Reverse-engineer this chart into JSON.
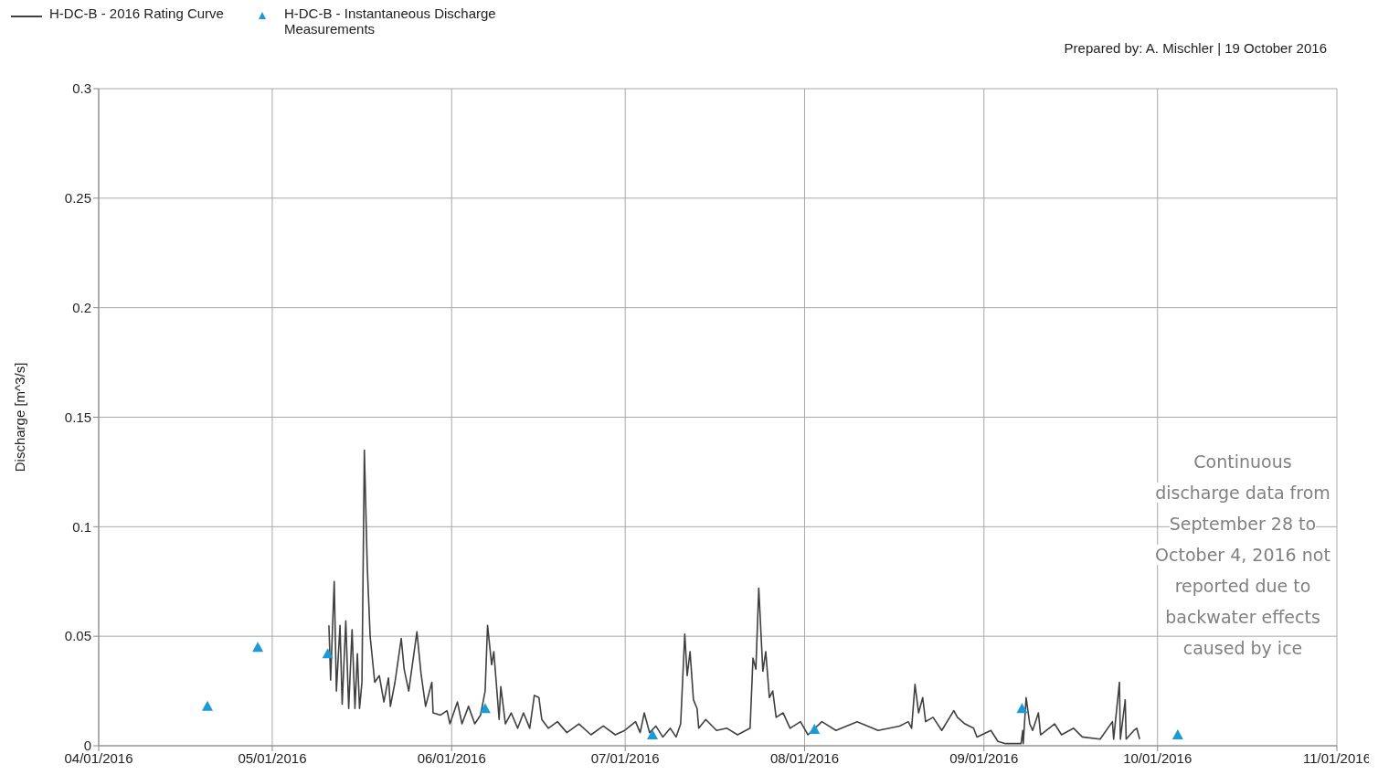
{
  "chart_data": {
    "type": "line",
    "ylabel": "Discharge [m^3/s]",
    "annotations": [
      "Prepared by: A. Mischler | 19 October 2016",
      "Continuous discharge data from September 28 to October 4, 2016 not reported due to backwater effects caused by ice"
    ],
    "xlim": [
      "2016-04-01",
      "2016-11-01"
    ],
    "xticks": [
      {
        "value": "2016-04-01",
        "label": "04/01/2016"
      },
      {
        "value": "2016-05-01",
        "label": "05/01/2016"
      },
      {
        "value": "2016-06-01",
        "label": "06/01/2016"
      },
      {
        "value": "2016-07-01",
        "label": "07/01/2016"
      },
      {
        "value": "2016-08-01",
        "label": "08/01/2016"
      },
      {
        "value": "2016-09-01",
        "label": "09/01/2016"
      },
      {
        "value": "2016-10-01",
        "label": "10/01/2016"
      },
      {
        "value": "2016-11-01",
        "label": "11/01/2016"
      }
    ],
    "ylim": [
      0,
      0.3
    ],
    "yticks": [
      0,
      0.05,
      0.1,
      0.15,
      0.2,
      0.25,
      0.3
    ],
    "grid": true,
    "legend": "top left",
    "series": [
      {
        "name": "H-DC-B - 2016 Rating Curve",
        "type": "line",
        "color": "#404040",
        "marker": "none",
        "x": [
          "2016-05-10T19:00",
          "2016-05-11T02:00",
          "2016-05-11T17:00",
          "2016-05-12T02:00",
          "2016-05-12T17:00",
          "2016-05-13T02:00",
          "2016-05-13T17:00",
          "2016-05-14T05:00",
          "2016-05-14T19:00",
          "2016-05-15T07:00",
          "2016-05-15T17:00",
          "2016-05-16T02:00",
          "2016-05-16T12:00",
          "2016-05-16T22:00",
          "2016-05-17T10:00",
          "2016-05-17T22:00",
          "2016-05-18T17:00",
          "2016-05-19T12:00",
          "2016-05-20T07:00",
          "2016-05-21T02:00",
          "2016-05-21T10:00",
          "2016-05-22T05:00",
          "2016-05-23T07:00",
          "2016-05-23T19:00",
          "2016-05-24T14:00",
          "2016-05-26T00:00",
          "2016-05-26T17:00",
          "2016-05-27T12:00",
          "2016-05-28T14:00",
          "2016-05-28T19:00",
          "2016-05-30T02:00",
          "2016-05-31T05:00",
          "2016-05-31T17:00",
          "2016-06-02T00:00",
          "2016-06-02T19:00",
          "2016-06-03T22:00",
          "2016-06-05T00:00",
          "2016-06-06T00:00",
          "2016-06-06T19:00",
          "2016-06-07T05:00",
          "2016-06-07T22:00",
          "2016-06-08T07:00",
          "2016-06-08T17:00",
          "2016-06-09T05:00",
          "2016-06-09T12:00",
          "2016-06-10T07:00",
          "2016-06-11T07:00",
          "2016-06-12T10:00",
          "2016-06-13T10:00",
          "2016-06-14T12:00",
          "2016-06-15T07:00",
          "2016-06-16T02:00",
          "2016-06-16T14:00",
          "2016-06-17T17:00",
          "2016-06-19T07:00",
          "2016-06-20T22:00",
          "2016-06-23T00:00",
          "2016-06-25T02:00",
          "2016-06-27T05:00",
          "2016-06-29T07:00",
          "2016-06-30T22:00",
          "2016-07-02T19:00",
          "2016-07-03T14:00",
          "2016-07-04T07:00",
          "2016-07-05T05:00",
          "2016-07-06T07:00",
          "2016-07-07T12:00",
          "2016-07-08T19:00",
          "2016-07-09T19:00",
          "2016-07-10T14:00",
          "2016-07-11T07:00",
          "2016-07-11T17:00",
          "2016-07-12T05:00",
          "2016-07-12T19:00",
          "2016-07-13T10:00",
          "2016-07-13T17:00",
          "2016-07-14T22:00",
          "2016-07-16T19:00",
          "2016-07-18T14:00",
          "2016-07-20T10:00",
          "2016-07-22T14:00",
          "2016-07-23T02:00",
          "2016-07-23T14:00",
          "2016-07-24T02:00",
          "2016-07-24T14:00",
          "2016-07-24T19:00",
          "2016-07-25T07:00",
          "2016-07-25T22:00",
          "2016-07-26T12:00",
          "2016-07-27T02:00",
          "2016-07-28T07:00",
          "2016-07-29T12:00",
          "2016-07-31T07:00",
          "2016-08-01T14:00",
          "2016-08-04T00:00",
          "2016-08-06T10:00",
          "2016-08-10T02:00",
          "2016-08-13T17:00",
          "2016-08-17T10:00",
          "2016-08-18T22:00",
          "2016-08-19T12:00",
          "2016-08-20T02:00",
          "2016-08-20T17:00",
          "2016-08-21T10:00",
          "2016-08-21T22:00",
          "2016-08-23T05:00",
          "2016-08-24T17:00",
          "2016-08-26T19:00",
          "2016-08-27T10:00",
          "2016-08-28T17:00",
          "2016-08-30T05:00",
          "2016-08-30T19:00",
          "2016-09-02T05:00",
          "2016-09-03T10:00",
          "2016-09-04T14:00",
          "2016-09-07T10:00",
          "2016-09-07T17:00",
          "2016-09-07T19:00",
          "2016-09-08T07:00",
          "2016-09-08T22:00",
          "2016-09-09T10:00",
          "2016-09-10T10:00",
          "2016-09-10T19:00",
          "2016-09-13T05:00",
          "2016-09-14T10:00",
          "2016-09-16T12:00",
          "2016-09-18T00:00",
          "2016-09-21T02:00",
          "2016-09-23T05:00",
          "2016-09-23T10:00",
          "2016-09-24T10:00",
          "2016-09-24T14:00",
          "2016-09-25T10:00",
          "2016-09-25T14:00",
          "2016-09-26T22:00",
          "2016-09-27T10:00",
          "2016-09-27T22:00"
        ],
        "values": [
          0.055,
          0.03,
          0.075,
          0.025,
          0.055,
          0.019,
          0.057,
          0.017,
          0.053,
          0.017,
          0.042,
          0.017,
          0.029,
          0.135,
          0.082,
          0.05,
          0.029,
          0.032,
          0.02,
          0.031,
          0.018,
          0.029,
          0.049,
          0.035,
          0.025,
          0.052,
          0.033,
          0.018,
          0.029,
          0.015,
          0.014,
          0.016,
          0.01,
          0.02,
          0.01,
          0.018,
          0.01,
          0.014,
          0.025,
          0.055,
          0.037,
          0.043,
          0.029,
          0.012,
          0.027,
          0.01,
          0.015,
          0.008,
          0.015,
          0.008,
          0.023,
          0.022,
          0.012,
          0.008,
          0.011,
          0.006,
          0.01,
          0.005,
          0.009,
          0.005,
          0.007,
          0.011,
          0.006,
          0.015,
          0.006,
          0.009,
          0.004,
          0.008,
          0.004,
          0.01,
          0.051,
          0.032,
          0.043,
          0.021,
          0.017,
          0.008,
          0.012,
          0.007,
          0.008,
          0.005,
          0.008,
          0.04,
          0.035,
          0.072,
          0.045,
          0.034,
          0.043,
          0.022,
          0.025,
          0.013,
          0.015,
          0.008,
          0.011,
          0.005,
          0.011,
          0.007,
          0.011,
          0.007,
          0.009,
          0.011,
          0.008,
          0.028,
          0.015,
          0.022,
          0.011,
          0.013,
          0.007,
          0.016,
          0.013,
          0.01,
          0.008,
          0.004,
          0.007,
          0.002,
          0.001,
          0.001,
          0.007,
          0.001,
          0.022,
          0.01,
          0.007,
          0.015,
          0.005,
          0.01,
          0.005,
          0.008,
          0.004,
          0.003,
          0.011,
          0.003,
          0.029,
          0.003,
          0.021,
          0.003,
          0.007,
          0.008,
          0.003
        ]
      },
      {
        "name": "H-DC-B - Instantaneous Discharge Measurements",
        "type": "scatter",
        "color": "#1a9ad6",
        "marker": "triangle",
        "x": [
          "2016-04-19T19:00",
          "2016-04-28T12:00",
          "2016-05-10T14:00",
          "2016-06-06T19:00",
          "2016-07-05T17:00",
          "2016-08-02T17:00",
          "2016-09-07T14:00",
          "2016-10-04T12:00"
        ],
        "values": [
          0.018,
          0.045,
          0.042,
          0.017,
          0.005,
          0.0075,
          0.017,
          0.005
        ]
      }
    ]
  }
}
